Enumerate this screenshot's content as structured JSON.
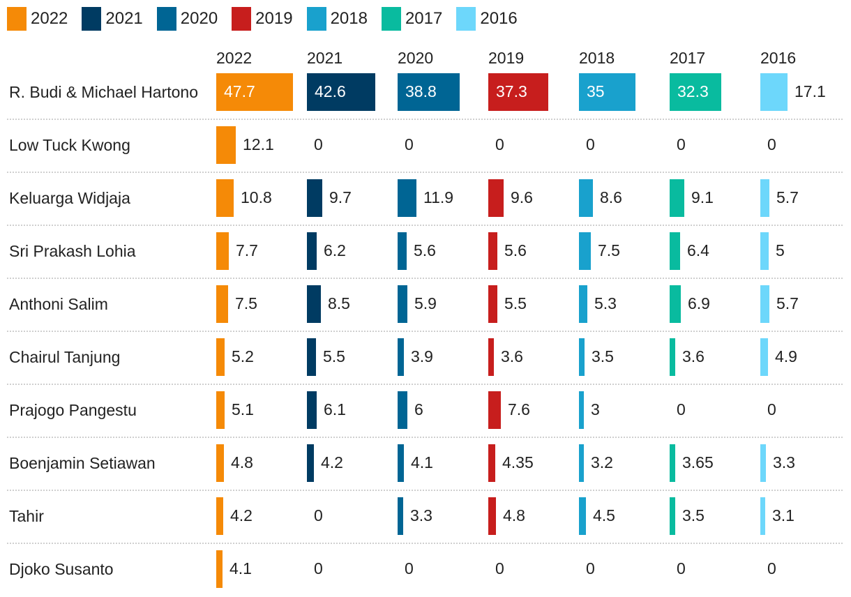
{
  "chart_data": {
    "type": "table",
    "legend_position": "top-left",
    "series": [
      {
        "name": "2022",
        "color": "#f58a07"
      },
      {
        "name": "2021",
        "color": "#003b62"
      },
      {
        "name": "2020",
        "color": "#006594"
      },
      {
        "name": "2019",
        "color": "#c71e1d"
      },
      {
        "name": "2018",
        "color": "#19a1cd"
      },
      {
        "name": "2017",
        "color": "#09bb9f"
      },
      {
        "name": "2016",
        "color": "#6dd7fb"
      }
    ],
    "rows": [
      {
        "name": "R. Budi & Michael Hartono",
        "values": [
          47.7,
          42.6,
          38.8,
          37.3,
          35,
          32.3,
          17.1
        ]
      },
      {
        "name": "Low Tuck Kwong",
        "values": [
          12.1,
          0,
          0,
          0,
          0,
          0,
          0
        ]
      },
      {
        "name": "Keluarga Widjaja",
        "values": [
          10.8,
          9.7,
          11.9,
          9.6,
          8.6,
          9.1,
          5.7
        ]
      },
      {
        "name": "Sri Prakash Lohia",
        "values": [
          7.7,
          6.2,
          5.6,
          5.6,
          7.5,
          6.4,
          5
        ]
      },
      {
        "name": "Anthoni Salim",
        "values": [
          7.5,
          8.5,
          5.9,
          5.5,
          5.3,
          6.9,
          5.7
        ]
      },
      {
        "name": "Chairul Tanjung",
        "values": [
          5.2,
          5.5,
          3.9,
          3.6,
          3.5,
          3.6,
          4.9
        ]
      },
      {
        "name": "Prajogo Pangestu",
        "values": [
          5.1,
          6.1,
          6,
          7.6,
          3,
          0,
          0
        ]
      },
      {
        "name": "Boenjamin Setiawan",
        "values": [
          4.8,
          4.2,
          4.1,
          4.35,
          3.2,
          3.65,
          3.3
        ]
      },
      {
        "name": "Tahir",
        "values": [
          4.2,
          0,
          3.3,
          4.8,
          4.5,
          3.5,
          3.1
        ]
      },
      {
        "name": "Djoko Susanto",
        "values": [
          4.1,
          0,
          0,
          0,
          0,
          0,
          0
        ]
      }
    ]
  }
}
